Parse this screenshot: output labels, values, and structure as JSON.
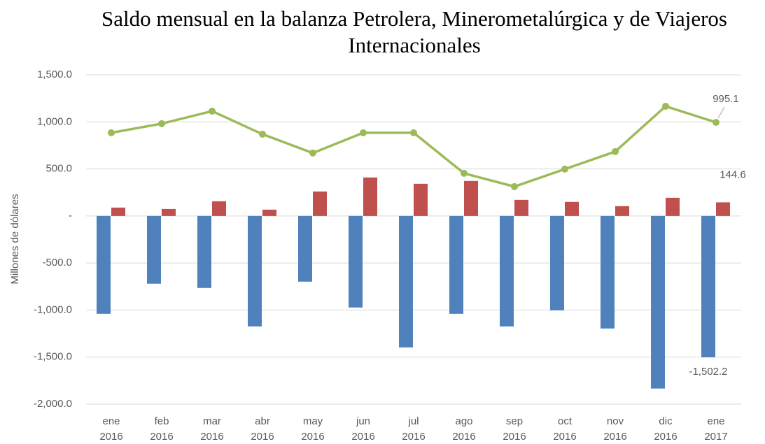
{
  "chart_data": {
    "type": "bar_line",
    "title": [
      "Saldo mensual en la balanza Petrolera, Minerometalúrgica y de Viajeros",
      "Internacionales"
    ],
    "y_label": "Millones de dólares",
    "categories": [
      "ene 2016",
      "feb 2016",
      "mar 2016",
      "abr 2016",
      "may 2016",
      "jun 2016",
      "jul 2016",
      "ago 2016",
      "sep 2016",
      "oct 2016",
      "nov 2016",
      "dic 2016",
      "ene 2017"
    ],
    "series": [
      {
        "type": "bar",
        "color": "#4f81bd",
        "values": [
          -1040,
          -720,
          -765,
          -1174,
          -698,
          -973,
          -1397,
          -1040,
          -1174,
          -1003,
          -1196,
          -1834,
          -1502.2
        ],
        "value_labels": [
          null,
          null,
          null,
          null,
          null,
          null,
          null,
          null,
          null,
          null,
          null,
          null,
          "-1,502.2"
        ]
      },
      {
        "type": "bar",
        "color": "#c0504d",
        "values": [
          89,
          74,
          156,
          67,
          260,
          409,
          342,
          372,
          171,
          149,
          104,
          193,
          144.6
        ],
        "value_labels": [
          null,
          null,
          null,
          null,
          null,
          null,
          null,
          null,
          null,
          null,
          null,
          null,
          "144.6"
        ]
      },
      {
        "type": "line",
        "color": "#9bbb59",
        "values": [
          884,
          981,
          1114,
          869,
          669,
          884,
          884,
          453,
          312,
          498,
          684,
          1166,
          995.1
        ],
        "value_labels": [
          null,
          null,
          null,
          null,
          null,
          null,
          null,
          null,
          null,
          null,
          null,
          null,
          "995.1"
        ]
      }
    ],
    "ylim": [
      -2000,
      1500
    ],
    "yticks": [
      {
        "value": -2000,
        "label": "-2,000.0"
      },
      {
        "value": -1500,
        "label": "-1,500.0"
      },
      {
        "value": -1000,
        "label": "-1,000.0"
      },
      {
        "value": -500,
        "label": "-500.0"
      },
      {
        "value": 0,
        "label": "-"
      },
      {
        "value": 500,
        "label": "500.0"
      },
      {
        "value": 1000,
        "label": "1,000.0"
      },
      {
        "value": 1500,
        "label": "1,500.0"
      }
    ],
    "grid": true
  }
}
